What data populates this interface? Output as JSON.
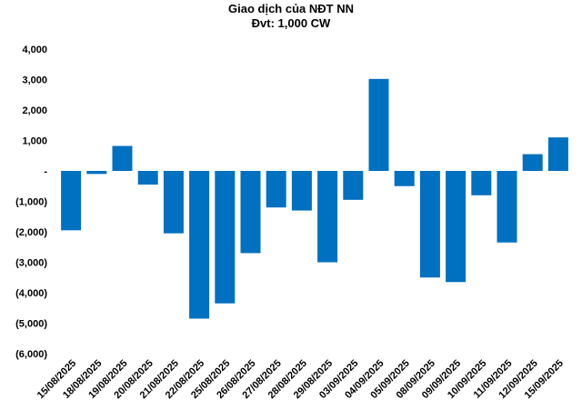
{
  "chart_data": {
    "type": "bar",
    "title": "Giao dịch của NĐT NN",
    "subtitle": "Đvt: 1,000 CW",
    "xlabel": "",
    "ylabel": "",
    "ylim": [
      -6000,
      4000
    ],
    "yticks": [
      4000,
      3000,
      2000,
      1000,
      0,
      -1000,
      -2000,
      -3000,
      -4000,
      -5000,
      -6000
    ],
    "ytick_labels": [
      "4,000",
      "3,000",
      "2,000",
      "1,000",
      "-",
      "(1,000)",
      "(2,000)",
      "(3,000)",
      "(4,000)",
      "(5,000)",
      "(6,000)"
    ],
    "grid": false,
    "bar_color": "#0070c0",
    "categories": [
      "15/08/2025",
      "18/08/2025",
      "19/08/2025",
      "20/08/2025",
      "21/08/2025",
      "22/08/2025",
      "25/08/2025",
      "26/08/2025",
      "27/08/2025",
      "28/08/2025",
      "29/08/2025",
      "03/09/2025",
      "04/09/2025",
      "05/09/2025",
      "08/09/2025",
      "09/09/2025",
      "10/09/2025",
      "11/09/2025",
      "12/09/2025",
      "15/09/2025"
    ],
    "values": [
      -1950,
      -100,
      820,
      -450,
      -2050,
      -4850,
      -4350,
      -2700,
      -1200,
      -1300,
      -3000,
      -950,
      3020,
      -500,
      -3500,
      -3650,
      -800,
      -2350,
      550,
      1100
    ]
  }
}
